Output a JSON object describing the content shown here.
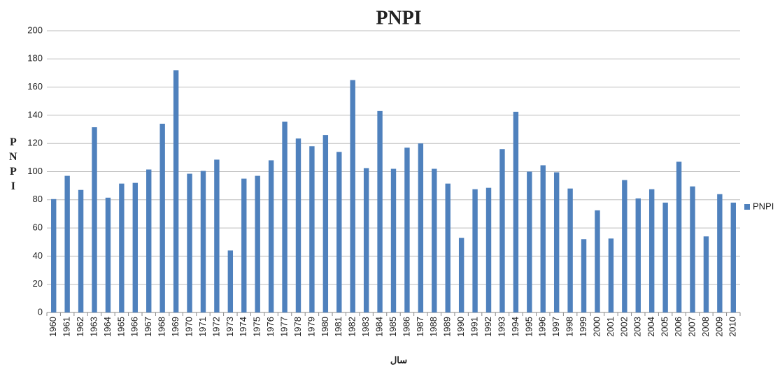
{
  "chart_data": {
    "type": "bar",
    "title": "PNPI",
    "y_label": "PNPI",
    "x_label": "سال",
    "categories": [
      "1960",
      "1961",
      "1962",
      "1963",
      "1964",
      "1965",
      "1966",
      "1967",
      "1968",
      "1969",
      "1970",
      "1971",
      "1972",
      "1973",
      "1974",
      "1975",
      "1976",
      "1977",
      "1978",
      "1979",
      "1980",
      "1981",
      "1982",
      "1983",
      "1984",
      "1985",
      "1986",
      "1987",
      "1988",
      "1989",
      "1990",
      "1991",
      "1992",
      "1993",
      "1994",
      "1995",
      "1996",
      "1997",
      "1998",
      "1999",
      "2000",
      "2001",
      "2002",
      "2003",
      "2004",
      "2005",
      "2006",
      "2007",
      "2008",
      "2009",
      "2010"
    ],
    "series": [
      {
        "name": "PNPI",
        "color": "#4f81bd",
        "values": [
          80.5,
          97,
          87,
          131.5,
          81.5,
          91.5,
          92,
          101.5,
          134,
          172,
          98.5,
          100.5,
          108.5,
          44,
          95,
          97,
          108,
          135.5,
          123.5,
          118,
          126,
          114,
          165,
          102.5,
          143,
          102,
          117,
          120,
          102,
          91.5,
          53,
          87.5,
          88.5,
          116,
          142.5,
          100,
          104.5,
          99.5,
          88,
          52,
          72.5,
          52.5,
          94,
          81,
          87.5,
          78,
          107,
          89.5,
          54,
          84,
          78
        ]
      }
    ],
    "ylim": [
      0,
      200
    ],
    "yticks": [
      0,
      20,
      40,
      60,
      80,
      100,
      120,
      140,
      160,
      180,
      200
    ],
    "grid": true,
    "legend": "right"
  }
}
